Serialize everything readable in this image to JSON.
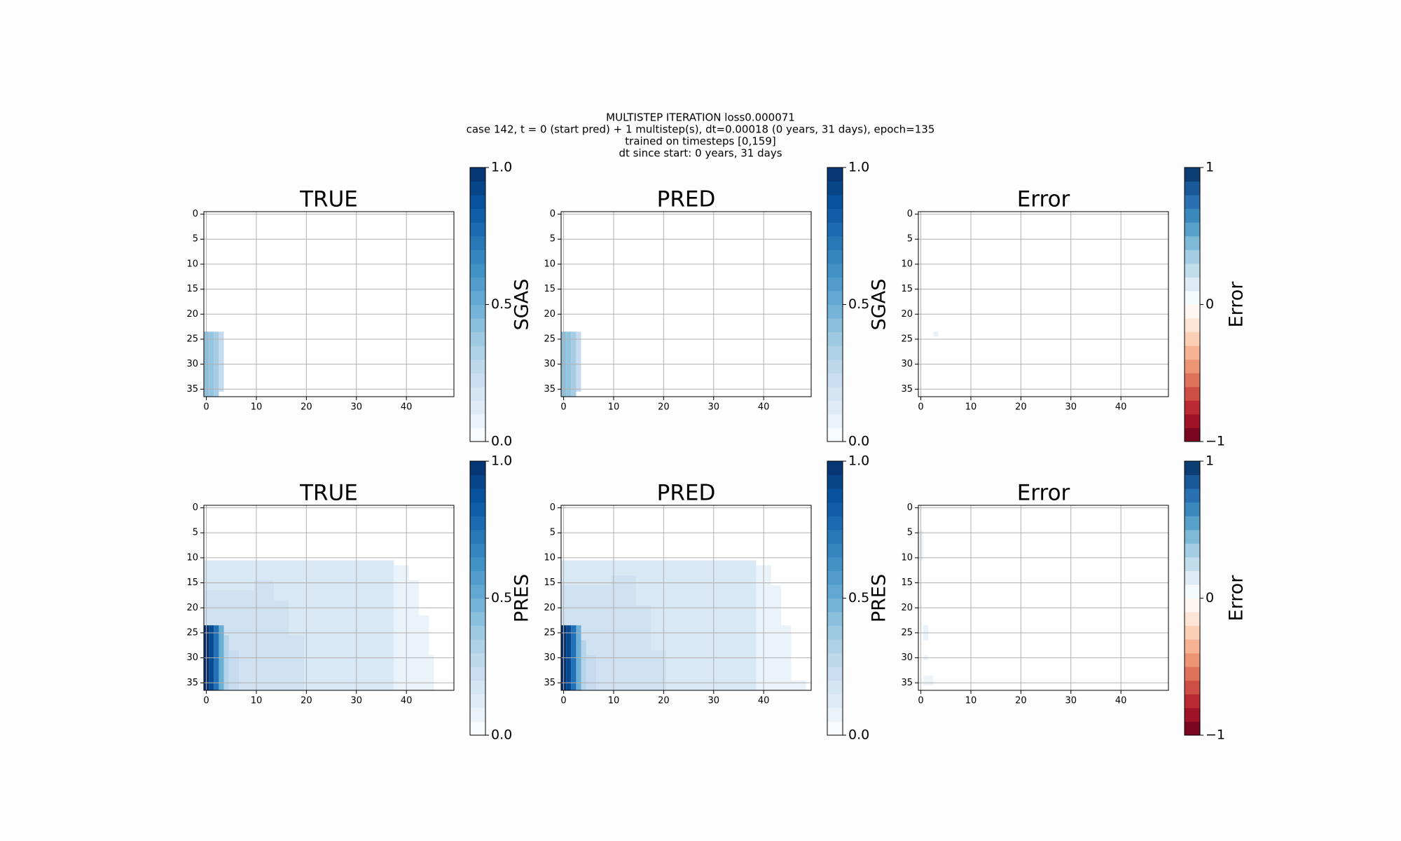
{
  "figure": {
    "title": [
      "MULTISTEP ITERATION loss0.000071",
      "case 142, t = 0 (start pred) + 1 multistep(s), dt=0.00018 (0 years, 31 days), epoch=135",
      "trained on timesteps [0,159]",
      "dt since start: 0 years, 31 days"
    ]
  },
  "chart_data": [
    {
      "type": "heatmap",
      "title": "TRUE",
      "colorbar_label": "SGAS",
      "xlim": [
        -0.5,
        49.5
      ],
      "ylim": [
        36.5,
        -0.5
      ],
      "xticks": [
        0,
        10,
        20,
        30,
        40
      ],
      "yticks": [
        0,
        5,
        10,
        15,
        20,
        25,
        30,
        35
      ],
      "grid": true,
      "clim": [
        0,
        1
      ],
      "cticks": [
        {
          "value": 0,
          "label": "0.0"
        },
        {
          "value": 0.5,
          "label": "0.5"
        },
        {
          "value": 1,
          "label": "1.0"
        }
      ],
      "colors": [
        "#ffffff",
        "#deebf7",
        "#c6dbef",
        "#9ecae1",
        "#6baed6",
        "#4292c6",
        "#2171b5",
        "#08519c",
        "#08306b"
      ],
      "cells": [
        [
          0,
          0,
          24,
          36,
          0.42
        ],
        [
          1,
          1,
          24,
          36,
          0.4
        ],
        [
          2,
          2,
          24,
          36,
          0.35
        ],
        [
          3,
          3,
          24,
          35,
          0.25
        ]
      ]
    },
    {
      "type": "heatmap",
      "title": "PRED",
      "colorbar_label": "SGAS",
      "xlim": [
        -0.5,
        49.5
      ],
      "ylim": [
        36.5,
        -0.5
      ],
      "xticks": [
        0,
        10,
        20,
        30,
        40
      ],
      "yticks": [
        0,
        5,
        10,
        15,
        20,
        25,
        30,
        35
      ],
      "grid": true,
      "clim": [
        0,
        1
      ],
      "cticks": [
        {
          "value": 0,
          "label": "0.0"
        },
        {
          "value": 0.5,
          "label": "0.5"
        },
        {
          "value": 1,
          "label": "1.0"
        }
      ],
      "colors": [
        "#ffffff",
        "#deebf7",
        "#c6dbef",
        "#9ecae1",
        "#6baed6",
        "#4292c6",
        "#2171b5",
        "#08519c",
        "#08306b"
      ],
      "cells": [
        [
          0,
          0,
          24,
          36,
          0.42
        ],
        [
          1,
          1,
          24,
          36,
          0.4
        ],
        [
          2,
          2,
          24,
          36,
          0.35
        ],
        [
          3,
          3,
          24,
          35,
          0.25
        ]
      ]
    },
    {
      "type": "heatmap",
      "title": "Error",
      "colorbar_label": "Error",
      "xlim": [
        -0.5,
        49.5
      ],
      "ylim": [
        36.5,
        -0.5
      ],
      "xticks": [
        0,
        10,
        20,
        30,
        40
      ],
      "yticks": [
        0,
        5,
        10,
        15,
        20,
        25,
        30,
        35
      ],
      "grid": true,
      "clim": [
        -1,
        1
      ],
      "cticks": [
        {
          "value": -1,
          "label": "−1"
        },
        0,
        1
      ],
      "colors": [
        "#67001f",
        "#b2182b",
        "#d6604d",
        "#f4a582",
        "#fddbc7",
        "#ffffff",
        "#d1e5f0",
        "#92c5de",
        "#4393c3",
        "#2166ac",
        "#053061"
      ],
      "cells": [
        [
          3,
          3,
          24,
          24,
          0.1
        ]
      ]
    },
    {
      "type": "heatmap",
      "title": "TRUE",
      "colorbar_label": "PRES",
      "xlim": [
        -0.5,
        49.5
      ],
      "ylim": [
        36.5,
        -0.5
      ],
      "xticks": [
        0,
        10,
        20,
        30,
        40
      ],
      "yticks": [
        0,
        5,
        10,
        15,
        20,
        25,
        30,
        35
      ],
      "grid": true,
      "clim": [
        0,
        1
      ],
      "cticks": [
        {
          "value": 0,
          "label": "0.0"
        },
        {
          "value": 0.5,
          "label": "0.5"
        },
        {
          "value": 1,
          "label": "1.0"
        }
      ],
      "colors": [
        "#ffffff",
        "#deebf7",
        "#c6dbef",
        "#9ecae1",
        "#6baed6",
        "#4292c6",
        "#2171b5",
        "#08519c",
        "#08306b"
      ],
      "cells": [
        [
          0,
          37,
          11,
          36,
          0.15
        ],
        [
          38,
          40,
          12,
          36,
          0.08
        ],
        [
          41,
          42,
          15,
          36,
          0.08
        ],
        [
          43,
          44,
          22,
          36,
          0.08
        ],
        [
          45,
          45,
          30,
          36,
          0.08
        ],
        [
          0,
          9,
          17,
          36,
          0.2
        ],
        [
          10,
          13,
          15,
          36,
          0.2
        ],
        [
          14,
          16,
          19,
          36,
          0.2
        ],
        [
          17,
          19,
          26,
          36,
          0.2
        ],
        [
          0,
          0,
          24,
          36,
          1.0
        ],
        [
          1,
          1,
          24,
          36,
          0.9
        ],
        [
          2,
          2,
          24,
          36,
          0.75
        ],
        [
          3,
          3,
          24,
          36,
          0.5
        ],
        [
          4,
          4,
          26,
          36,
          0.3
        ],
        [
          5,
          6,
          29,
          36,
          0.25
        ]
      ]
    },
    {
      "type": "heatmap",
      "title": "PRED",
      "colorbar_label": "PRES",
      "xlim": [
        -0.5,
        49.5
      ],
      "ylim": [
        36.5,
        -0.5
      ],
      "xticks": [
        0,
        10,
        20,
        30,
        40
      ],
      "yticks": [
        0,
        5,
        10,
        15,
        20,
        25,
        30,
        35
      ],
      "grid": true,
      "clim": [
        0,
        1
      ],
      "cticks": [
        {
          "value": 0,
          "label": "0.0"
        },
        {
          "value": 0.5,
          "label": "0.5"
        },
        {
          "value": 1,
          "label": "1.0"
        }
      ],
      "colors": [
        "#ffffff",
        "#deebf7",
        "#c6dbef",
        "#9ecae1",
        "#6baed6",
        "#4292c6",
        "#2171b5",
        "#08519c",
        "#08306b"
      ],
      "cells": [
        [
          0,
          38,
          11,
          36,
          0.15
        ],
        [
          39,
          41,
          12,
          36,
          0.08
        ],
        [
          42,
          43,
          16,
          36,
          0.08
        ],
        [
          44,
          45,
          24,
          36,
          0.08
        ],
        [
          46,
          48,
          35,
          36,
          0.08
        ],
        [
          0,
          9,
          16,
          36,
          0.2
        ],
        [
          10,
          14,
          14,
          36,
          0.2
        ],
        [
          15,
          17,
          20,
          36,
          0.2
        ],
        [
          18,
          20,
          29,
          36,
          0.2
        ],
        [
          0,
          0,
          24,
          36,
          1.0
        ],
        [
          1,
          1,
          24,
          36,
          0.9
        ],
        [
          2,
          2,
          24,
          36,
          0.75
        ],
        [
          3,
          3,
          24,
          36,
          0.5
        ],
        [
          4,
          4,
          27,
          36,
          0.3
        ],
        [
          5,
          6,
          30,
          36,
          0.25
        ]
      ]
    },
    {
      "type": "heatmap",
      "title": "Error",
      "colorbar_label": "Error",
      "xlim": [
        -0.5,
        49.5
      ],
      "ylim": [
        36.5,
        -0.5
      ],
      "xticks": [
        0,
        10,
        20,
        30,
        40
      ],
      "yticks": [
        0,
        5,
        10,
        15,
        20,
        25,
        30,
        35
      ],
      "grid": true,
      "clim": [
        -1,
        1
      ],
      "cticks": [
        {
          "value": -1,
          "label": "−1"
        },
        0,
        1
      ],
      "colors": [
        "#67001f",
        "#b2182b",
        "#d6604d",
        "#f4a582",
        "#fddbc7",
        "#ffffff",
        "#d1e5f0",
        "#92c5de",
        "#4393c3",
        "#2166ac",
        "#053061"
      ],
      "cells": [
        [
          0,
          0,
          5,
          10,
          0.08
        ],
        [
          1,
          1,
          24,
          26,
          0.1
        ],
        [
          1,
          1,
          30,
          30,
          0.08
        ],
        [
          1,
          2,
          34,
          35,
          0.08
        ]
      ]
    }
  ]
}
